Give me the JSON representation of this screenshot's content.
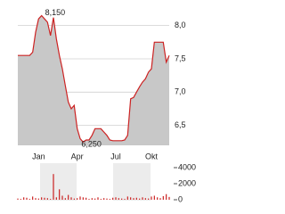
{
  "chart_data": [
    {
      "type": "area",
      "xlim": [
        0,
        51
      ],
      "xticks": [
        {
          "value": 7,
          "label": "Jan"
        },
        {
          "value": 20,
          "label": "Apr"
        },
        {
          "value": 33,
          "label": "Jul"
        },
        {
          "value": 45,
          "label": "Okt"
        }
      ],
      "ylim": [
        6.2,
        8.25
      ],
      "yticks": [
        {
          "value": 6.5,
          "label": "6,5"
        },
        {
          "value": 7,
          "label": "7,0"
        },
        {
          "value": 7.5,
          "label": "7,5"
        },
        {
          "value": 8,
          "label": "8,0"
        }
      ],
      "grid": true,
      "color": "#cc2222",
      "fill": "#c8c8c8",
      "values": [
        7.55,
        7.55,
        7.55,
        7.55,
        7.55,
        7.6,
        7.9,
        8.1,
        8.15,
        8.1,
        8.05,
        7.85,
        8.12,
        7.8,
        7.55,
        7.35,
        7.1,
        6.85,
        6.75,
        6.8,
        6.45,
        6.3,
        6.25,
        6.28,
        6.28,
        6.35,
        6.45,
        6.45,
        6.45,
        6.4,
        6.35,
        6.28,
        6.27,
        6.27,
        6.27,
        6.27,
        6.28,
        6.35,
        6.9,
        6.92,
        7.0,
        7.08,
        7.15,
        7.2,
        7.3,
        7.35,
        7.75,
        7.75,
        7.75,
        7.75,
        7.45,
        7.55
      ],
      "annotations": [
        {
          "x": 8,
          "value": 8.15,
          "label": "8,150"
        },
        {
          "x": 22,
          "value": 6.25,
          "label": "6,250"
        }
      ]
    },
    {
      "type": "bar",
      "xlim": [
        0,
        51
      ],
      "ylim": [
        0,
        4500
      ],
      "yticks": [
        0,
        2000,
        4000
      ],
      "color": "#cc2222",
      "values": [
        150,
        100,
        300,
        250,
        100,
        400,
        200,
        150,
        300,
        250,
        200,
        100,
        3200,
        300,
        1300,
        500,
        200,
        600,
        300,
        150,
        200,
        400,
        300,
        250,
        100,
        200,
        150,
        300,
        100,
        200,
        150,
        100,
        250,
        300,
        200,
        150,
        100,
        400,
        300,
        200,
        250,
        150,
        300,
        200,
        150,
        400,
        500,
        300,
        200,
        450,
        700,
        350
      ]
    }
  ]
}
